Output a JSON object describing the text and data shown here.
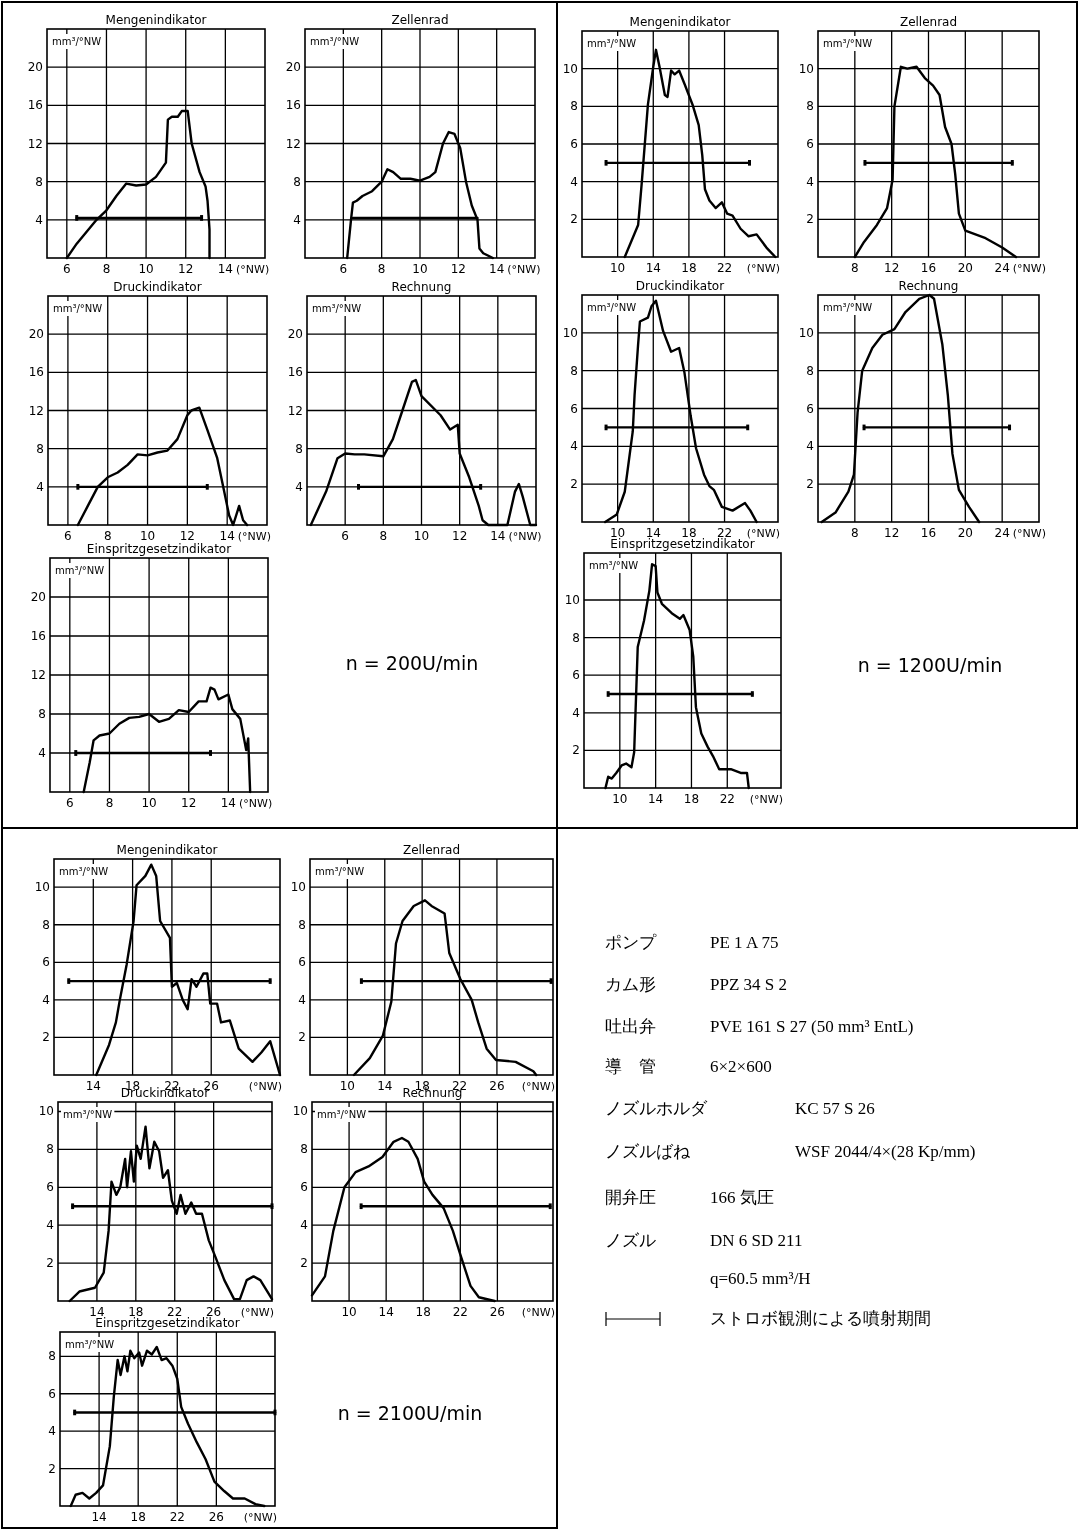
{
  "chart_data": [
    {
      "type": "line",
      "title": "Mengenindikator",
      "ylabel": "mm³/°NW",
      "xlabel": "(°NW)",
      "xlim": [
        5,
        16
      ],
      "ylim": [
        0,
        24
      ],
      "xticks": [
        6,
        8,
        10,
        12,
        14
      ],
      "yticks": [
        4,
        8,
        12,
        16,
        20
      ],
      "grid": true,
      "series": [
        {
          "color": "#000000",
          "x": [
            6,
            6.5,
            7.5,
            8,
            8.5,
            9,
            9.5,
            10,
            10.5,
            11,
            11.1,
            11.3,
            11.6,
            11.8,
            12.1,
            12.3,
            12.7,
            13,
            13.1,
            13.2,
            13.2
          ],
          "values": [
            0,
            1.5,
            4,
            5,
            6.5,
            7.8,
            7.6,
            7.7,
            8.5,
            10,
            14.5,
            14.8,
            14.8,
            15.4,
            15.4,
            12,
            9,
            7.5,
            6,
            3,
            0
          ]
        },
        {
          "color": "#000000",
          "x": [
            6.5,
            12.8
          ],
          "values": [
            4.2,
            4.2
          ],
          "errors": [
            0.3,
            0.3
          ]
        }
      ]
    },
    {
      "type": "line",
      "title": "Zellenrad",
      "ylabel": "mm³/°NW",
      "xlabel": "(°NW)",
      "xlim": [
        4,
        16
      ],
      "ylim": [
        0,
        24
      ],
      "xticks": [
        6,
        8,
        10,
        12,
        14
      ],
      "yticks": [
        4,
        8,
        12,
        16,
        20
      ],
      "grid": true,
      "series": [
        {
          "color": "#000000",
          "x": [
            6.2,
            6.4,
            6.5,
            6.7,
            7,
            7.5,
            8,
            8.3,
            8.6,
            9,
            9.5,
            10,
            10.5,
            10.8,
            11.2,
            11.5,
            11.8,
            12.1,
            12.4,
            12.7,
            13,
            13.1,
            13.3,
            13.8
          ],
          "values": [
            0,
            4,
            5.8,
            6,
            6.5,
            7,
            8,
            9.3,
            9,
            8.3,
            8.3,
            8.1,
            8.5,
            9,
            12,
            13.2,
            13,
            11.5,
            8,
            5.5,
            4,
            1,
            0.5,
            0
          ]
        },
        {
          "color": "#000000",
          "x": [
            6.5,
            13
          ],
          "values": [
            4.2,
            4.2
          ]
        }
      ]
    },
    {
      "type": "line",
      "title": "Druckindikator",
      "ylabel": "mm³/°NW",
      "xlabel": "(°NW)",
      "xlim": [
        5,
        16
      ],
      "ylim": [
        0,
        24
      ],
      "xticks": [
        6,
        8,
        10,
        12,
        14
      ],
      "yticks": [
        4,
        8,
        12,
        16,
        20
      ],
      "grid": true,
      "series": [
        {
          "color": "#000000",
          "x": [
            6.5,
            7,
            7.5,
            8,
            8.5,
            9,
            9.5,
            10,
            10.5,
            11,
            11.5,
            12,
            12.2,
            12.6,
            13,
            13.5,
            13.8,
            14.1,
            14.3,
            14.6,
            14.8,
            15
          ],
          "values": [
            0,
            2,
            4,
            5,
            5.5,
            6.3,
            7.4,
            7.3,
            7.6,
            7.8,
            9,
            11.5,
            12,
            12.3,
            10,
            7,
            4,
            1,
            0,
            2,
            0.5,
            0
          ]
        },
        {
          "color": "#000000",
          "x": [
            6.5,
            13
          ],
          "values": [
            4,
            4
          ],
          "errors": [
            0.3,
            0.3
          ]
        }
      ]
    },
    {
      "type": "line",
      "title": "Rechnung",
      "ylabel": "mm³/°NW",
      "xlabel": "(°NW)",
      "xlim": [
        4,
        16
      ],
      "ylim": [
        0,
        24
      ],
      "xticks": [
        6,
        8,
        10,
        12,
        14
      ],
      "yticks": [
        4,
        8,
        12,
        16,
        20
      ],
      "grid": true,
      "series": [
        {
          "color": "#000000",
          "x": [
            4.2,
            5,
            5.6,
            6,
            6.5,
            7,
            8,
            8.5,
            9,
            9.5,
            9.7,
            10,
            11,
            11.5,
            11.9,
            12,
            12.5,
            13,
            13.2,
            13.5,
            14.5,
            14.9,
            15.1,
            15.3,
            15.7,
            16
          ],
          "values": [
            0,
            3.5,
            7,
            7.5,
            7.4,
            7.4,
            7.2,
            9,
            12,
            15,
            15.2,
            13.5,
            11.5,
            10,
            10.5,
            7.5,
            5,
            2,
            0.5,
            0,
            0,
            3.5,
            4.3,
            3,
            0,
            0
          ]
        },
        {
          "color": "#000000",
          "x": [
            6.7,
            13.1
          ],
          "values": [
            4,
            4
          ],
          "errors": [
            0.3,
            0.3
          ]
        }
      ]
    },
    {
      "type": "line",
      "title": "Einspritzgesetzindikator",
      "ylabel": "mm³/°NW",
      "xlabel": "(°NW)",
      "xlim": [
        5,
        16
      ],
      "ylim": [
        0,
        24
      ],
      "xticks": [
        6,
        8,
        10,
        12,
        14
      ],
      "yticks": [
        4,
        8,
        12,
        16,
        20
      ],
      "grid": true,
      "annotations": [
        "n = 200U/min"
      ],
      "series": [
        {
          "color": "#000000",
          "x": [
            6.7,
            7,
            7.2,
            7.5,
            8,
            8.5,
            9,
            9.5,
            10,
            10.5,
            11,
            11.5,
            12,
            12.5,
            12.9,
            13.1,
            13.3,
            13.5,
            14,
            14.2,
            14.6,
            14.9,
            15,
            15.1
          ],
          "values": [
            0,
            3,
            5.3,
            5.8,
            6,
            7,
            7.6,
            7.7,
            8,
            7.2,
            7.5,
            8.4,
            8.2,
            9.3,
            9.3,
            10.7,
            10.5,
            9.5,
            10,
            8.5,
            7.5,
            4.3,
            5.5,
            0
          ]
        },
        {
          "color": "#000000",
          "x": [
            6.3,
            13.1
          ],
          "values": [
            4,
            4
          ],
          "errors": [
            0.3,
            0.3
          ]
        }
      ]
    },
    {
      "type": "line",
      "title": "Mengenindikator",
      "ylabel": "mm³/°NW",
      "xlabel": "(°NW)",
      "xlim": [
        6,
        28
      ],
      "ylim": [
        0,
        12
      ],
      "xticks": [
        10,
        14,
        18,
        22
      ],
      "yticks": [
        2,
        4,
        6,
        8,
        10
      ],
      "grid": true,
      "series": [
        {
          "color": "#000000",
          "x": [
            10.8,
            12.3,
            12.7,
            13.4,
            14,
            14.3,
            14.7,
            15.3,
            15.6,
            16,
            16.4,
            16.9,
            17.5,
            18.4,
            19.1,
            19.5,
            19.8,
            20.3,
            21,
            21.7,
            22.3,
            22.9,
            23.8,
            24.7,
            25.6,
            26.7,
            27.7
          ],
          "values": [
            0,
            1.7,
            3.9,
            8.1,
            10.1,
            11,
            10.1,
            8.6,
            8.5,
            9.9,
            9.7,
            9.9,
            9.2,
            8.1,
            7,
            5.4,
            3.6,
            3,
            2.6,
            2.9,
            2.3,
            2.2,
            1.5,
            1.1,
            1.2,
            0.5,
            0
          ]
        },
        {
          "color": "#000000",
          "x": [
            8.7,
            24.8
          ],
          "values": [
            5,
            5
          ],
          "errors": [
            0.15,
            0.15
          ]
        }
      ]
    },
    {
      "type": "line",
      "title": "Zellenrad",
      "ylabel": "mm³/°NW",
      "xlabel": "(°NW)",
      "xlim": [
        4,
        28
      ],
      "ylim": [
        0,
        12
      ],
      "xticks": [
        8,
        12,
        16,
        20,
        24
      ],
      "yticks": [
        2,
        4,
        6,
        8,
        10
      ],
      "grid": true,
      "series": [
        {
          "color": "#000000",
          "x": [
            8,
            9,
            10.4,
            11.5,
            12.1,
            12.3,
            13,
            13.7,
            14.7,
            15.6,
            16.5,
            17.2,
            17.8,
            18.5,
            18.9,
            19.3,
            20,
            22.2,
            24,
            25.5
          ],
          "values": [
            0,
            0.8,
            1.7,
            2.6,
            4.1,
            8,
            10.1,
            10,
            10.1,
            9.5,
            9.1,
            8.6,
            6.9,
            6,
            4.4,
            2.3,
            1.4,
            1,
            0.5,
            0
          ]
        },
        {
          "color": "#000000",
          "x": [
            9.1,
            25.1
          ],
          "values": [
            5,
            5
          ],
          "errors": [
            0.15,
            0.15
          ]
        }
      ]
    },
    {
      "type": "line",
      "title": "Druckindikator",
      "ylabel": "mm³/°NW",
      "xlabel": "(°NW)",
      "xlim": [
        6,
        28
      ],
      "ylim": [
        0,
        12
      ],
      "xticks": [
        10,
        14,
        18,
        22
      ],
      "yticks": [
        2,
        4,
        6,
        8,
        10
      ],
      "grid": true,
      "series": [
        {
          "color": "#000000",
          "x": [
            8.6,
            9.9,
            10.8,
            11.7,
            11.9,
            12.3,
            12.5,
            13.4,
            13.8,
            14.3,
            15.1,
            16,
            16.9,
            17.5,
            18.2,
            18.8,
            19.7,
            20.3,
            20.8,
            21.7,
            22.9,
            24.3,
            24.9,
            25.6
          ],
          "values": [
            0,
            0.4,
            1.6,
            4.8,
            6.7,
            9.4,
            10.6,
            10.8,
            11.4,
            11.7,
            10.1,
            9,
            9.2,
            7.9,
            5.6,
            3.9,
            2.5,
            1.9,
            1.7,
            0.8,
            0.6,
            1,
            0.6,
            0
          ]
        },
        {
          "color": "#000000",
          "x": [
            8.7,
            24.6
          ],
          "values": [
            5,
            5
          ],
          "errors": [
            0.15,
            0.15
          ]
        }
      ]
    },
    {
      "type": "line",
      "title": "Rechnung",
      "ylabel": "mm³/°NW",
      "xlabel": "(°NW)",
      "xlim": [
        4,
        28
      ],
      "ylim": [
        0,
        12
      ],
      "xticks": [
        8,
        12,
        16,
        20,
        24
      ],
      "yticks": [
        2,
        4,
        6,
        8,
        10
      ],
      "grid": true,
      "series": [
        {
          "color": "#000000",
          "x": [
            4.4,
            5.9,
            7.3,
            7.9,
            8.3,
            8.8,
            9.9,
            11,
            12.3,
            13.5,
            15,
            16.1,
            16.6,
            17.5,
            18.1,
            18.6,
            19.3,
            20.4,
            21.5
          ],
          "values": [
            0,
            0.5,
            1.6,
            2.5,
            5.8,
            8,
            9.2,
            9.9,
            10.2,
            11.1,
            11.8,
            12,
            11.8,
            9.4,
            6.7,
            3.6,
            1.7,
            0.8,
            0
          ]
        },
        {
          "color": "#000000",
          "x": [
            9,
            24.8
          ],
          "values": [
            5,
            5
          ],
          "errors": [
            0.15,
            0.15
          ]
        }
      ]
    },
    {
      "type": "line",
      "title": "Einspritzgesetzindikator",
      "ylabel": "mm³/°NW",
      "xlabel": "(°NW)",
      "xlim": [
        6,
        28
      ],
      "ylim": [
        0,
        12.5
      ],
      "xticks": [
        10,
        14,
        18,
        22
      ],
      "yticks": [
        2,
        4,
        6,
        8,
        10
      ],
      "grid": true,
      "annotations": [
        "n = 1200U/min"
      ],
      "series": [
        {
          "color": "#000000",
          "x": [
            8.4,
            8.7,
            9.1,
            9.6,
            10.2,
            10.7,
            11.3,
            11.6,
            12,
            12.7,
            13.3,
            13.6,
            14,
            14.2,
            14.7,
            15.8,
            16.7,
            17.1,
            17.8,
            18.2,
            18.5,
            19.1,
            19.8,
            20.4,
            21.1,
            22.4,
            23.5,
            24.2,
            24.4
          ],
          "values": [
            0,
            0.6,
            0.5,
            0.8,
            1.2,
            1.3,
            1.1,
            1.9,
            7.5,
            8.9,
            10.5,
            11.9,
            11.8,
            10.4,
            9.8,
            9.3,
            9,
            9.2,
            8.4,
            7,
            4.3,
            2.9,
            2.2,
            1.7,
            1,
            1,
            0.8,
            0.8,
            0
          ]
        },
        {
          "color": "#000000",
          "x": [
            8.7,
            24.8
          ],
          "values": [
            5,
            5
          ],
          "errors": [
            0.15,
            0.15
          ]
        }
      ]
    },
    {
      "type": "line",
      "title": "Mengenindikator",
      "ylabel": "mm³/°NW",
      "xlabel": "(°NW)",
      "xlim": [
        10,
        33
      ],
      "ylim": [
        0,
        11.5
      ],
      "xticks": [
        14,
        18,
        22,
        26
      ],
      "yticks": [
        2,
        4,
        6,
        8,
        10
      ],
      "grid": true,
      "series": [
        {
          "color": "#000000",
          "x": [
            14.3,
            15.6,
            16.3,
            16.7,
            17.4,
            18.1,
            18.4,
            19.3,
            19.9,
            20.4,
            20.8,
            21.8,
            22,
            22.5,
            23.1,
            23.6,
            24,
            24.5,
            25.2,
            25.6,
            25.9,
            26.6,
            27,
            27.9,
            28.8,
            30.2,
            31.1,
            32,
            33
          ],
          "values": [
            0,
            1.6,
            2.8,
            4,
            5.9,
            8.2,
            10.1,
            10.6,
            11.2,
            10.6,
            8.2,
            7.3,
            4.7,
            4.9,
            4,
            3.5,
            5.1,
            4.7,
            5.4,
            5.4,
            3.8,
            3.8,
            2.8,
            2.9,
            1.4,
            0.7,
            1.2,
            1.8,
            0
          ]
        },
        {
          "color": "#000000",
          "x": [
            11.5,
            32
          ],
          "values": [
            5,
            5
          ],
          "errors": [
            0.15,
            0.15
          ]
        }
      ]
    },
    {
      "type": "line",
      "title": "Zellenrad",
      "ylabel": "mm³/°NW",
      "xlabel": "(°NW)",
      "xlim": [
        6,
        32
      ],
      "ylim": [
        0,
        11.5
      ],
      "xticks": [
        10,
        14,
        18,
        22,
        26
      ],
      "yticks": [
        2,
        4,
        6,
        8,
        10
      ],
      "grid": true,
      "series": [
        {
          "color": "#000000",
          "x": [
            10.7,
            12.4,
            13.8,
            14.7,
            15.2,
            15.9,
            17.1,
            18.3,
            19,
            19.7,
            20.4,
            20.9,
            22.1,
            23.3,
            24,
            24.9,
            25.9,
            28,
            29.9,
            30.2
          ],
          "values": [
            0,
            0.9,
            2.1,
            3.9,
            7,
            8.2,
            9,
            9.3,
            9,
            8.8,
            8.6,
            6.5,
            5.1,
            4,
            2.8,
            1.4,
            0.8,
            0.7,
            0.2,
            0
          ]
        },
        {
          "color": "#000000",
          "x": [
            11.5,
            31.8
          ],
          "values": [
            5,
            5
          ],
          "errors": [
            0.15,
            0.15
          ]
        }
      ]
    },
    {
      "type": "line",
      "title": "Druckindikator",
      "ylabel": "mm³/°NW",
      "xlabel": "(°NW)",
      "xlim": [
        10,
        32
      ],
      "ylim": [
        0,
        10.5
      ],
      "xticks": [
        14,
        18,
        22,
        26
      ],
      "yticks": [
        2,
        4,
        6,
        8,
        10
      ],
      "grid": true,
      "series": [
        {
          "color": "#000000",
          "x": [
            11.2,
            12.2,
            13.8,
            14.7,
            15.2,
            15.5,
            16,
            16.4,
            16.9,
            17.1,
            17.5,
            17.8,
            18.1,
            18.5,
            19,
            19.4,
            19.9,
            20.4,
            20.8,
            21.3,
            21.7,
            22.2,
            22.6,
            23.1,
            23.7,
            24.2,
            24.8,
            25.5,
            26.2,
            27.1,
            28.1,
            28.7,
            29.4,
            30.1,
            30.8,
            32
          ],
          "values": [
            0,
            0.5,
            0.7,
            1.5,
            3.7,
            6.3,
            5.6,
            6,
            7.5,
            6,
            7.9,
            6.3,
            8.2,
            7.5,
            9.2,
            7,
            8.4,
            7.9,
            6.5,
            6.9,
            5.3,
            4.6,
            5.6,
            4.6,
            5.2,
            4.6,
            4.6,
            3.2,
            2.3,
            1.1,
            0.1,
            0.1,
            1.1,
            1.3,
            1.1,
            0.1
          ]
        },
        {
          "color": "#000000",
          "x": [
            11.5,
            32
          ],
          "values": [
            5,
            5
          ],
          "errors": [
            0.15,
            0.15
          ]
        }
      ]
    },
    {
      "type": "line",
      "title": "Rechnung",
      "ylabel": "mm³/°NW",
      "xlabel": "(°NW)",
      "xlim": [
        6,
        32
      ],
      "ylim": [
        0,
        10.5
      ],
      "xticks": [
        10,
        14,
        18,
        22,
        26
      ],
      "yticks": [
        2,
        4,
        6,
        8,
        10
      ],
      "grid": true,
      "series": [
        {
          "color": "#000000",
          "x": [
            6,
            7.4,
            8.3,
            9.5,
            10.7,
            12.1,
            13.6,
            14.8,
            15.7,
            16.4,
            17.4,
            18.1,
            19,
            20.2,
            21.2,
            22.1,
            23.1,
            24,
            25.7
          ],
          "values": [
            0.3,
            1.3,
            3.7,
            6,
            6.8,
            7.1,
            7.6,
            8.4,
            8.6,
            8.4,
            7.5,
            6.3,
            5.6,
            4.9,
            3.7,
            2.3,
            0.8,
            0.2,
            0
          ]
        },
        {
          "color": "#000000",
          "x": [
            11.3,
            31.7
          ],
          "values": [
            5,
            5
          ],
          "errors": [
            0.15,
            0.15
          ]
        }
      ]
    },
    {
      "type": "line",
      "title": "Einspritzgesetzindikator",
      "ylabel": "mm³/°NW",
      "xlabel": "(°NW)",
      "xlim": [
        10,
        32
      ],
      "ylim": [
        0,
        9.3
      ],
      "xticks": [
        14,
        18,
        22,
        26
      ],
      "yticks": [
        2,
        4,
        6,
        8
      ],
      "grid": true,
      "annotations": [
        "n = 2100U/min"
      ],
      "series": [
        {
          "color": "#000000",
          "x": [
            11.1,
            11.6,
            12.3,
            13,
            13.7,
            14.4,
            15.1,
            15.5,
            15.9,
            16.2,
            16.6,
            16.9,
            17.2,
            17.6,
            18.1,
            18.4,
            18.9,
            19.4,
            19.9,
            20.4,
            20.9,
            21.5,
            22,
            22.4,
            23.1,
            24,
            24.9,
            25.8,
            26.8,
            27.7,
            28.9,
            30,
            30.9
          ],
          "values": [
            0,
            0.6,
            0.7,
            0.4,
            0.7,
            1.1,
            3.2,
            5.8,
            7.8,
            7,
            8,
            7.2,
            8.3,
            7.9,
            8.2,
            7.5,
            8.3,
            8.1,
            8.5,
            7.8,
            7.9,
            7.5,
            6.8,
            5.3,
            4.4,
            3.4,
            2.5,
            1.3,
            0.8,
            0.4,
            0.4,
            0.1,
            0
          ]
        },
        {
          "color": "#000000",
          "x": [
            11.5,
            32
          ],
          "values": [
            5,
            5
          ],
          "errors": [
            0.15,
            0.15
          ]
        }
      ]
    },
    {
      "type": "other",
      "categories": [
        "ポンプ",
        "カム形",
        "吐出弁",
        "導　管",
        "ノズルホルダ",
        "ノズルばね",
        "開弁圧",
        "ノズル",
        null,
        null
      ],
      "annotations": [
        "PE 1 A 75",
        "PPZ 34 S 2",
        "PVE 161 S 27 (50 mm³ EntL)",
        "6×2×600",
        "KC 57 S 26",
        "WSF 2044/4×(28 Kp/mm)",
        "166 気圧",
        "DN 6 SD 211",
        "q=60.5 mm³/H",
        "ストロボ観測による噴射期間"
      ]
    }
  ]
}
